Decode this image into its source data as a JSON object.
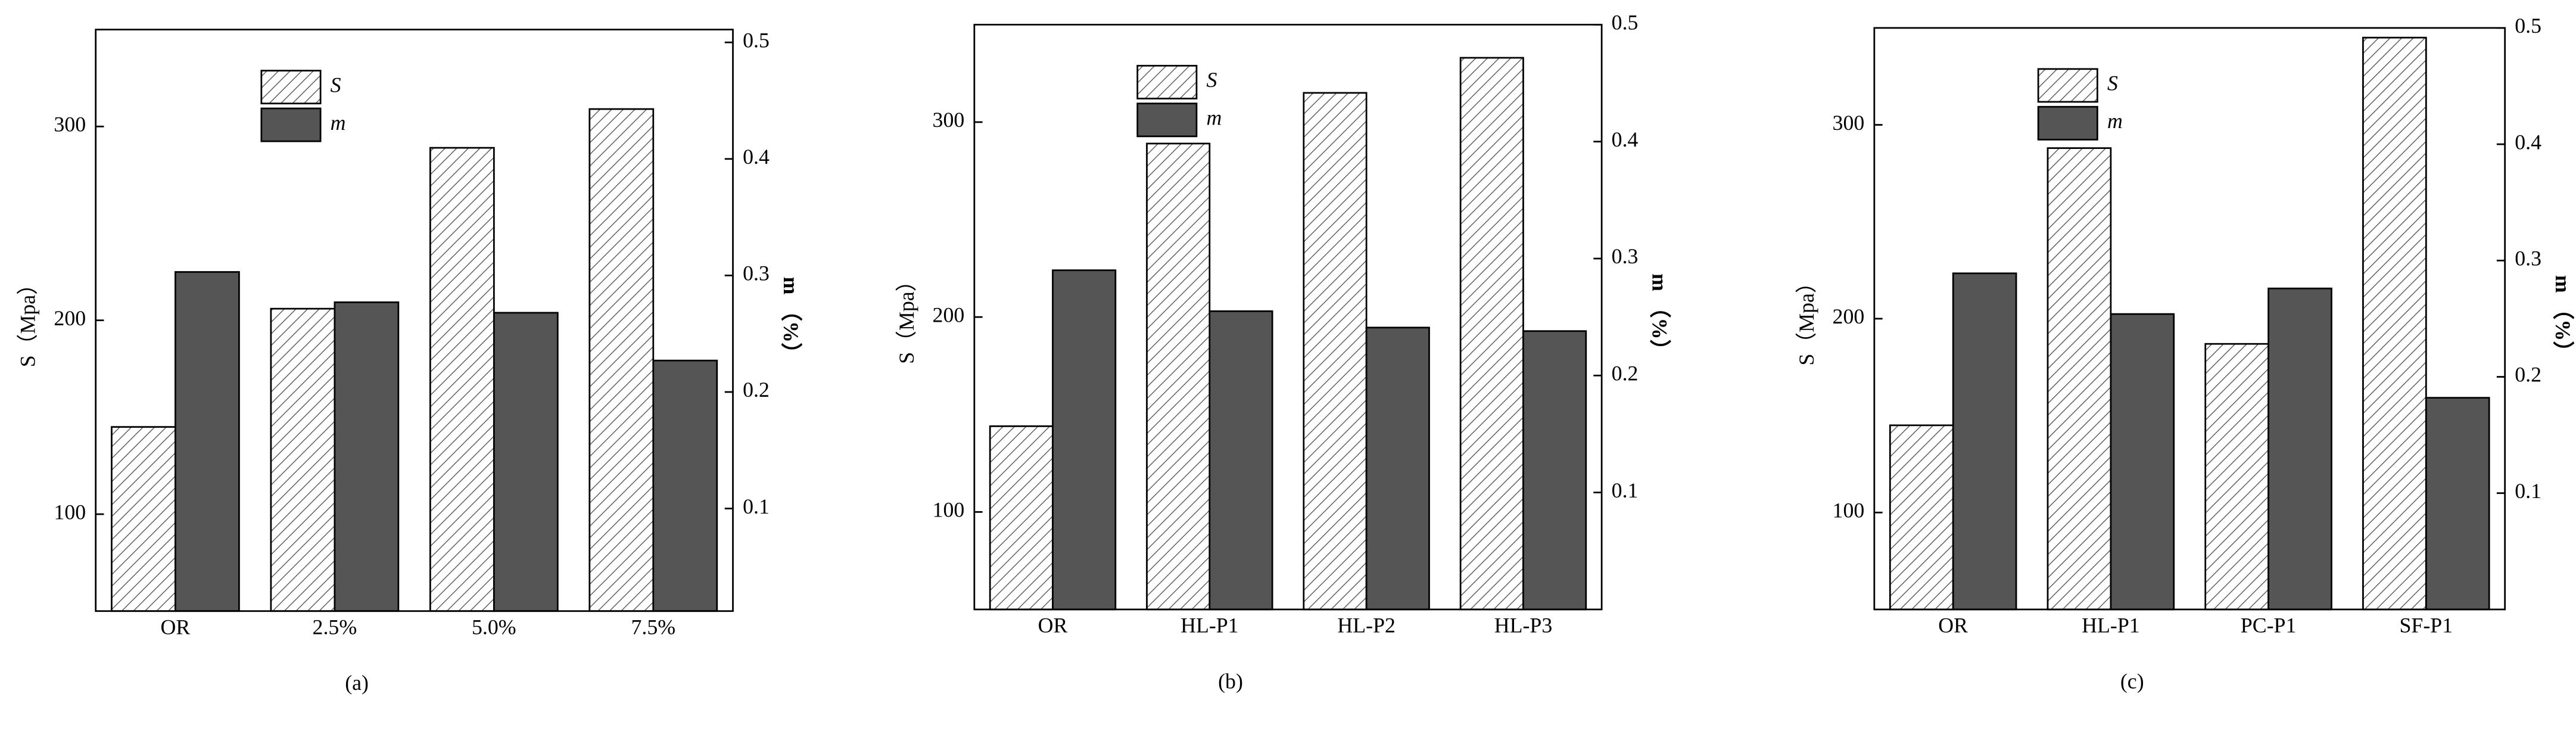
{
  "chart_data": [
    {
      "type": "bar",
      "label": "(a)",
      "ylabel": "S（Mpa）",
      "y2label": "m （%）",
      "categories": [
        "OR",
        "2.5%",
        "5.0%",
        "7.5%"
      ],
      "series": [
        {
          "name": "S",
          "color": "#ffffff",
          "pattern": "hatch",
          "values": [
            145,
            206,
            289,
            309
          ]
        },
        {
          "name": "m",
          "color": "#555555",
          "axis": "y2",
          "values": [
            0.303,
            0.277,
            0.268,
            0.227
          ]
        }
      ],
      "ylim": [
        50,
        350
      ],
      "yticks": [
        100,
        200,
        300
      ],
      "y2lim": [
        0.012,
        0.511
      ],
      "y2ticks": [
        0.1,
        0.2,
        0.3,
        0.4,
        0.5
      ],
      "legend": "upper left"
    },
    {
      "type": "bar",
      "label": "(b)",
      "ylabel": "S（Mpa）",
      "y2label": "m （%）",
      "categories": [
        "OR",
        "HL-P1",
        "HL-P2",
        "HL-P3"
      ],
      "series": [
        {
          "name": "S",
          "color": "#ffffff",
          "pattern": "hatch",
          "values": [
            144,
            289,
            315,
            333
          ]
        },
        {
          "name": "m",
          "color": "#555555",
          "axis": "y2",
          "values": [
            0.29,
            0.255,
            0.241,
            0.238
          ]
        }
      ],
      "ylim": [
        50,
        350
      ],
      "yticks": [
        100,
        200,
        300
      ],
      "y2lim": [
        0,
        0.5
      ],
      "y2ticks": [
        0.1,
        0.2,
        0.3,
        0.4,
        0.5
      ],
      "legend": "upper left"
    },
    {
      "type": "bar",
      "label": "(c)",
      "ylabel": "S（Mpa）",
      "y2label": "m （%）",
      "categories": [
        "OR",
        "HL-P1",
        "PC-P1",
        "SF-P1"
      ],
      "series": [
        {
          "name": "S",
          "color": "#ffffff",
          "pattern": "hatch",
          "values": [
            145,
            288,
            187,
            345
          ]
        },
        {
          "name": "m",
          "color": "#555555",
          "axis": "y2",
          "values": [
            0.289,
            0.254,
            0.276,
            0.182
          ]
        }
      ],
      "ylim": [
        50,
        350
      ],
      "yticks": [
        100,
        200,
        300
      ],
      "y2lim": [
        0,
        0.5
      ],
      "y2ticks": [
        0.1,
        0.2,
        0.3,
        0.4,
        0.5
      ],
      "legend": "upper left"
    }
  ]
}
